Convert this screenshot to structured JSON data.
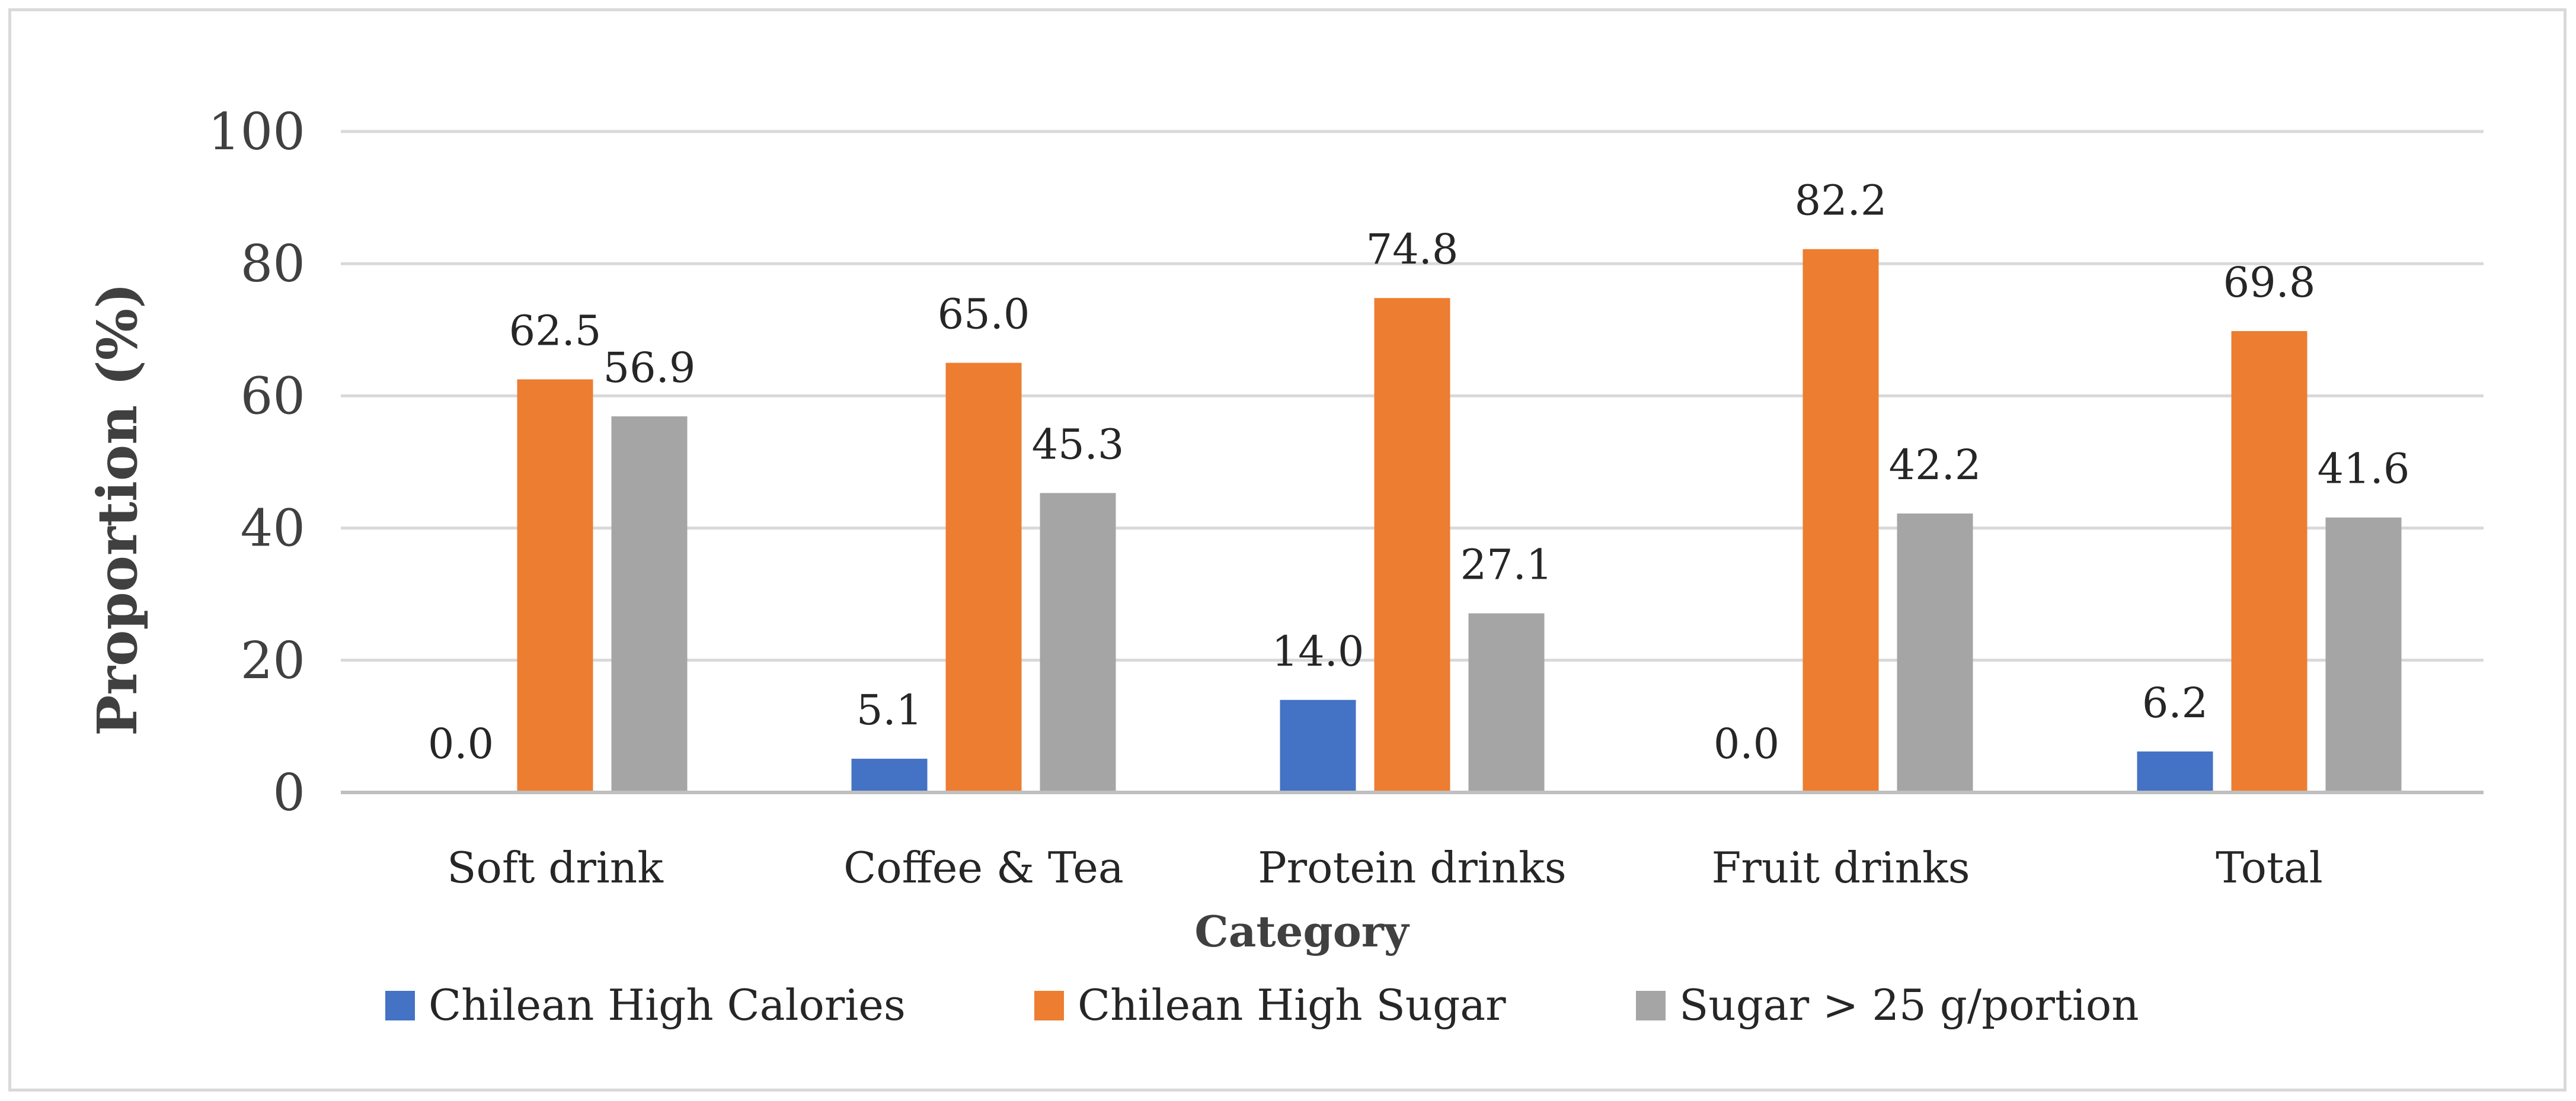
{
  "chart_data": {
    "type": "bar",
    "title": "",
    "xlabel": "Category",
    "ylabel": "Proportion (%)",
    "ylim": [
      0,
      100
    ],
    "yticks": [
      0,
      20,
      40,
      60,
      80,
      100
    ],
    "grid": true,
    "legend_position": "bottom",
    "categories": [
      "Soft drink",
      "Coffee & Tea",
      "Protein drinks",
      "Fruit drinks",
      "Total"
    ],
    "series": [
      {
        "name": "Chilean High Calories",
        "color": "#4472c4",
        "values": [
          0.0,
          5.1,
          14.0,
          0.0,
          6.2
        ],
        "labels": [
          "0.0",
          "5.1",
          "14.0",
          "0.0",
          "6.2"
        ]
      },
      {
        "name": "Chilean High Sugar",
        "color": "#ed7d31",
        "values": [
          62.5,
          65.0,
          74.8,
          82.2,
          69.8
        ],
        "labels": [
          "62.5",
          "65.0",
          "74.8",
          "82.2",
          "69.8"
        ]
      },
      {
        "name": "Sugar > 25 g/portion",
        "color": "#a5a5a5",
        "values": [
          56.9,
          45.3,
          27.1,
          42.2,
          41.6
        ],
        "labels": [
          "56.9",
          "45.3",
          "27.1",
          "42.2",
          "41.6"
        ]
      }
    ]
  }
}
